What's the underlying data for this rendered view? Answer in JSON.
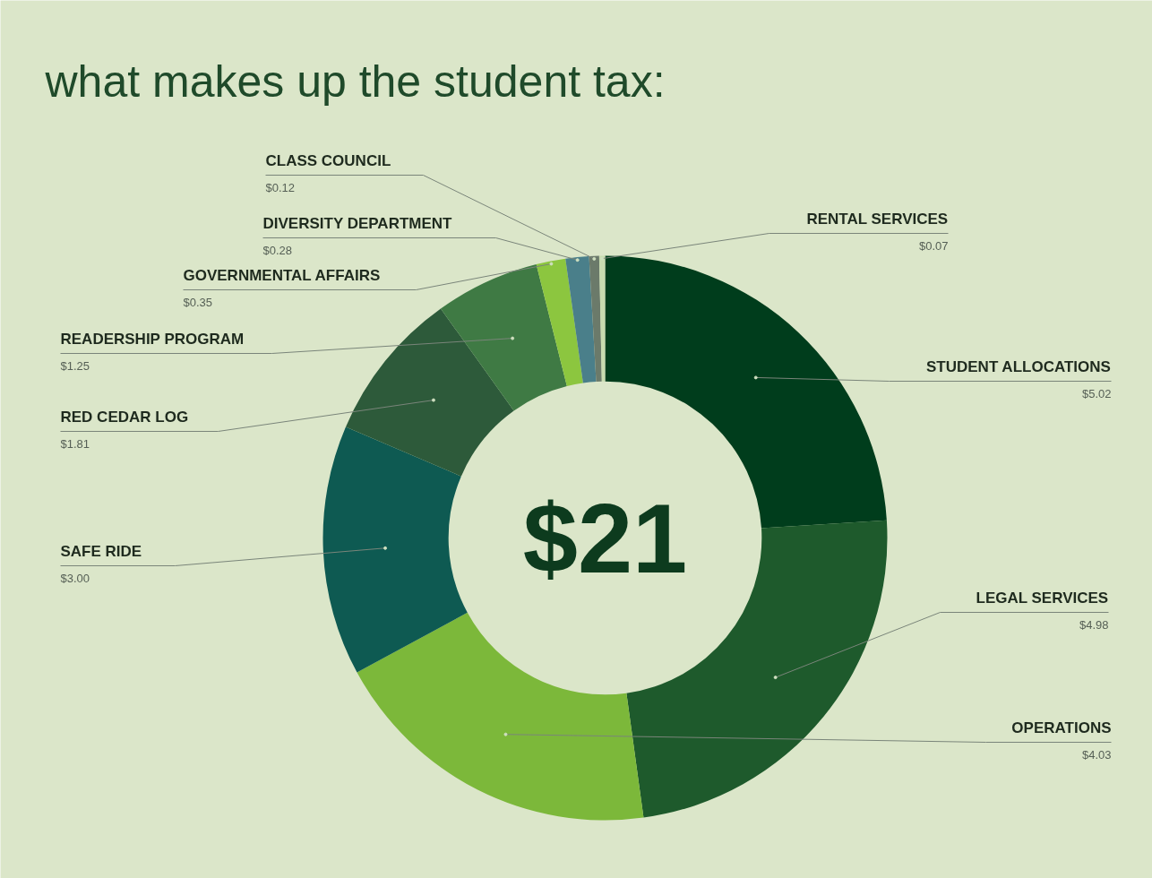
{
  "chart_data": {
    "type": "donut",
    "title": "what makes up the student tax:",
    "categories": [
      "STUDENT ALLOCATIONS",
      "LEGAL SERVICES",
      "OPERATIONS",
      "SAFE RIDE",
      "RED CEDAR LOG",
      "READERSHIP PROGRAM",
      "GOVERNMENTAL AFFAIRS",
      "DIVERSITY DEPARTMENT",
      "CLASS COUNCIL",
      "RENTAL SERVICES"
    ],
    "values": [
      5.02,
      4.98,
      4.03,
      3.0,
      1.81,
      1.25,
      0.35,
      0.28,
      0.12,
      0.07
    ],
    "value_labels": [
      "$5.02",
      "$4.98",
      "$4.03",
      "$3.00",
      "$1.81",
      "$1.25",
      "$0.35",
      "$0.28",
      "$0.12",
      "$0.07"
    ],
    "colors": [
      "#003d1c",
      "#1e5a2c",
      "#7cb83a",
      "#0e5a52",
      "#2d5a3a",
      "#3f7a44",
      "#8cc63f",
      "#4a7f8a",
      "#6b7a6a",
      "#c8dcb0"
    ],
    "annotations": [
      "$21"
    ]
  }
}
